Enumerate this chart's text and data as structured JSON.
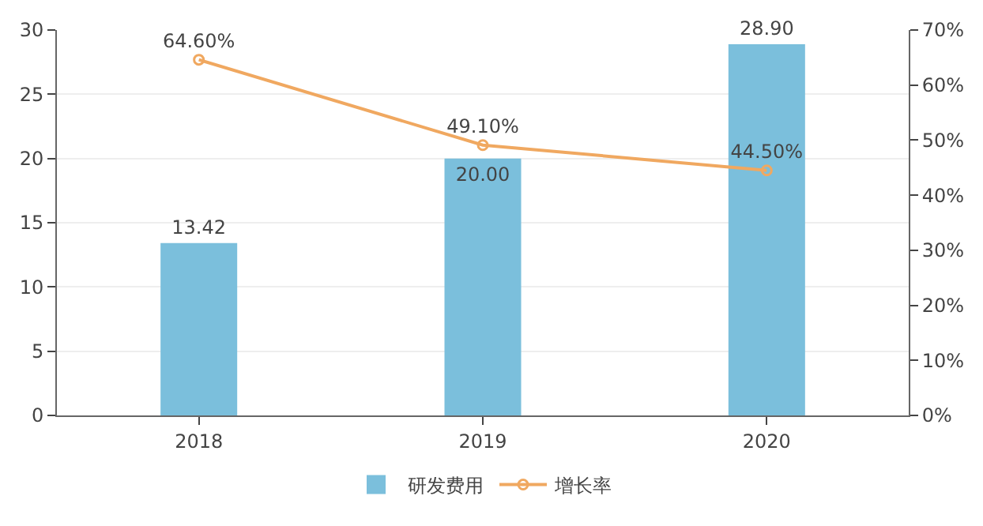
{
  "chart_data": {
    "type": "bar",
    "categories": [
      "2018",
      "2019",
      "2020"
    ],
    "series": [
      {
        "name": "研发费用",
        "color": "#7bbfdc",
        "values": [
          13.42,
          20,
          28.9
        ],
        "value_labels": [
          "13.42",
          "20.00",
          "28.90"
        ]
      },
      {
        "name": "增长率",
        "type": "line",
        "axis": "y2",
        "color": "#f0a860",
        "marker": "circle",
        "values": [
          64.6,
          49.1,
          44.5
        ],
        "value_labels": [
          "64.60%",
          "49.10%",
          "44.50%"
        ]
      }
    ],
    "ylim": [
      0,
      30
    ],
    "yticks": [
      0,
      5,
      10,
      15,
      20,
      25,
      30
    ],
    "y2lim": [
      0,
      70
    ],
    "y2ticks": [
      {
        "value": 0,
        "label": "0%"
      },
      {
        "value": 10,
        "label": "10%"
      },
      {
        "value": 20,
        "label": "20%"
      },
      {
        "value": 30,
        "label": "30%"
      },
      {
        "value": 40,
        "label": "40%"
      },
      {
        "value": 50,
        "label": "50%"
      },
      {
        "value": 60,
        "label": "60%"
      },
      {
        "value": 70,
        "label": "70%"
      }
    ],
    "grid": "y",
    "legend": "bottom"
  }
}
